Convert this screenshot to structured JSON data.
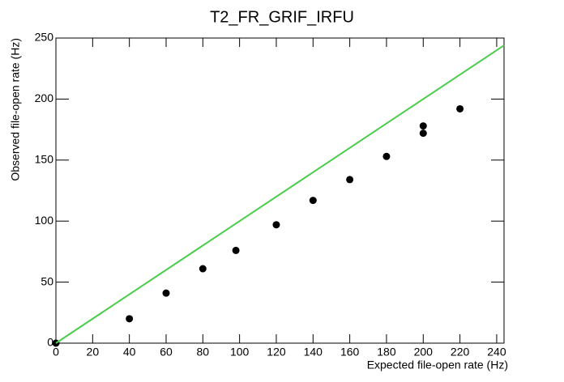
{
  "chart_data": {
    "type": "scatter",
    "title": "T2_FR_GRIF_IRFU",
    "x_label": "Expected file-open rate (Hz)",
    "y_label": "Observed file-open rate (Hz)",
    "xlim": [
      0,
      244
    ],
    "ylim": [
      0,
      250
    ],
    "xticks": [
      0,
      20,
      40,
      60,
      80,
      100,
      120,
      140,
      160,
      180,
      200,
      220,
      240
    ],
    "yticks": [
      0,
      50,
      100,
      150,
      200,
      250
    ],
    "series": [
      {
        "style": "markers",
        "color": "#000000",
        "x": [
          0,
          40,
          60,
          80,
          98,
          120,
          140,
          160,
          180,
          200,
          200,
          220
        ],
        "values": [
          0,
          20,
          41,
          61,
          76,
          97,
          117,
          134,
          153,
          172,
          178,
          192
        ]
      },
      {
        "style": "line",
        "color": "#4ccc4c",
        "x": [
          0,
          244
        ],
        "values": [
          0,
          244
        ]
      }
    ]
  }
}
